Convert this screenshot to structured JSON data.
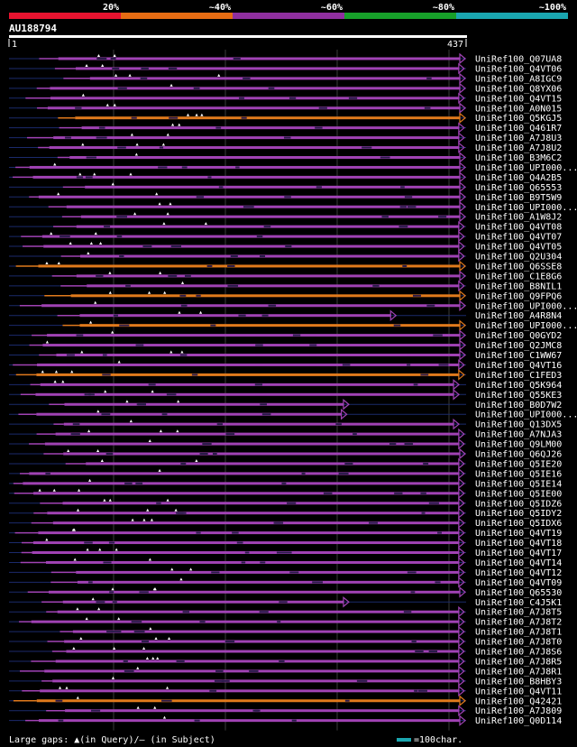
{
  "chart_data": {
    "type": "alignment-overview",
    "title": "AU188794",
    "query_start": "1",
    "query_end": "437",
    "scale_percent_labels": [
      "20%",
      "~40%",
      "~60%",
      "~80%",
      "~100%"
    ],
    "scale_colors": [
      "#e8132f",
      "#e86d13",
      "#8f2f9f",
      "#17a02a",
      "#1aa6b0"
    ],
    "category_colors": {
      "magenta": "#a042b4",
      "orange": "#e07a1c"
    },
    "legend_text": "Large gaps: ▲(in Query)/— (in Subject)",
    "legend_scale_text": "=100char.",
    "legend_scale_color": "#1aa6b0",
    "hits": [
      {
        "label": "UniRef100_Q07UA8",
        "start": 1,
        "end": 437,
        "color": "magenta"
      },
      {
        "label": "UniRef100_Q4VT06",
        "start": 1,
        "end": 430,
        "color": "magenta"
      },
      {
        "label": "UniRef100_A8IGC9",
        "start": 1,
        "end": 437,
        "color": "magenta"
      },
      {
        "label": "UniRef100_Q8YX06",
        "start": 1,
        "end": 437,
        "color": "magenta"
      },
      {
        "label": "UniRef100_Q4VT15",
        "start": 1,
        "end": 430,
        "color": "magenta"
      },
      {
        "label": "UniRef100_A0N015",
        "start": 1,
        "end": 437,
        "color": "magenta"
      },
      {
        "label": "UniRef100_Q5KGJ5",
        "start": 1,
        "end": 437,
        "color": "orange"
      },
      {
        "label": "UniRef100_Q461R7",
        "start": 1,
        "end": 430,
        "color": "magenta"
      },
      {
        "label": "UniRef100_A7J8U3",
        "start": 1,
        "end": 430,
        "color": "magenta"
      },
      {
        "label": "UniRef100_A7J8U2",
        "start": 1,
        "end": 430,
        "color": "magenta"
      },
      {
        "label": "UniRef100_B3M6C2",
        "start": 1,
        "end": 437,
        "color": "magenta"
      },
      {
        "label": "UniRef100_UPI000...",
        "start": 1,
        "end": 437,
        "color": "magenta"
      },
      {
        "label": "UniRef100_Q4A2B5",
        "start": 1,
        "end": 437,
        "color": "magenta"
      },
      {
        "label": "UniRef100_Q65553",
        "start": 1,
        "end": 432,
        "color": "magenta"
      },
      {
        "label": "UniRef100_B9T5W9",
        "start": 1,
        "end": 437,
        "color": "magenta"
      },
      {
        "label": "UniRef100_UPI000...",
        "start": 1,
        "end": 442,
        "color": "magenta"
      },
      {
        "label": "UniRef100_A1W8J2",
        "start": 1,
        "end": 445,
        "color": "magenta"
      },
      {
        "label": "UniRef100_Q4VT08",
        "start": 1,
        "end": 430,
        "color": "magenta"
      },
      {
        "label": "UniRef100_Q4VT07",
        "start": 1,
        "end": 430,
        "color": "magenta"
      },
      {
        "label": "UniRef100_Q4VT05",
        "start": 1,
        "end": 430,
        "color": "magenta"
      },
      {
        "label": "UniRef100_Q2U304",
        "start": 1,
        "end": 430,
        "color": "magenta"
      },
      {
        "label": "UniRef100_Q6SSE8",
        "start": 1,
        "end": 437,
        "color": "orange"
      },
      {
        "label": "UniRef100_C1E8G6",
        "start": 1,
        "end": 437,
        "color": "magenta"
      },
      {
        "label": "UniRef100_B8NIL1",
        "start": 1,
        "end": 430,
        "color": "magenta"
      },
      {
        "label": "UniRef100_Q9FPQ6",
        "start": 1,
        "end": 437,
        "color": "orange"
      },
      {
        "label": "UniRef100_UPI000...",
        "start": 1,
        "end": 437,
        "color": "magenta"
      },
      {
        "label": "UniRef100_A4R8N4",
        "start": 1,
        "end": 365,
        "color": "magenta"
      },
      {
        "label": "UniRef100_UPI000...",
        "start": 1,
        "end": 445,
        "color": "orange"
      },
      {
        "label": "UniRef100_Q0GYD2",
        "start": 1,
        "end": 437,
        "color": "magenta"
      },
      {
        "label": "UniRef100_Q2JMC8",
        "start": 1,
        "end": 437,
        "color": "magenta"
      },
      {
        "label": "UniRef100_C1WW67",
        "start": 1,
        "end": 440,
        "color": "magenta"
      },
      {
        "label": "UniRef100_Q4VT16",
        "start": 1,
        "end": 430,
        "color": "magenta"
      },
      {
        "label": "UniRef100_C1FED3",
        "start": 1,
        "end": 430,
        "color": "orange"
      },
      {
        "label": "UniRef100_Q5K964",
        "start": 1,
        "end": 425,
        "color": "magenta"
      },
      {
        "label": "UniRef100_Q55KE3",
        "start": 1,
        "end": 425,
        "color": "magenta"
      },
      {
        "label": "UniRef100_B0D7W2",
        "start": 1,
        "end": 320,
        "color": "magenta"
      },
      {
        "label": "UniRef100_UPI000...",
        "start": 1,
        "end": 318,
        "color": "magenta"
      },
      {
        "label": "UniRef100_Q13DX5",
        "start": 1,
        "end": 425,
        "color": "magenta"
      },
      {
        "label": "UniRef100_A7NJA3",
        "start": 1,
        "end": 430,
        "color": "magenta"
      },
      {
        "label": "UniRef100_Q9LM00",
        "start": 1,
        "end": 430,
        "color": "magenta"
      },
      {
        "label": "UniRef100_Q6QJ26",
        "start": 1,
        "end": 440,
        "color": "magenta"
      },
      {
        "label": "UniRef100_Q5IE20",
        "start": 1,
        "end": 430,
        "color": "magenta"
      },
      {
        "label": "UniRef100_Q5IE16",
        "start": 1,
        "end": 430,
        "color": "magenta"
      },
      {
        "label": "UniRef100_Q5IE14",
        "start": 1,
        "end": 430,
        "color": "magenta"
      },
      {
        "label": "UniRef100_Q5IE00",
        "start": 1,
        "end": 430,
        "color": "magenta"
      },
      {
        "label": "UniRef100_Q5IDZ6",
        "start": 1,
        "end": 430,
        "color": "magenta"
      },
      {
        "label": "UniRef100_Q5IDY2",
        "start": 1,
        "end": 430,
        "color": "magenta"
      },
      {
        "label": "UniRef100_Q5IDX6",
        "start": 1,
        "end": 430,
        "color": "magenta"
      },
      {
        "label": "UniRef100_Q4VT19",
        "start": 1,
        "end": 430,
        "color": "magenta"
      },
      {
        "label": "UniRef100_Q4VT18",
        "start": 1,
        "end": 430,
        "color": "magenta"
      },
      {
        "label": "UniRef100_Q4VT17",
        "start": 1,
        "end": 430,
        "color": "magenta"
      },
      {
        "label": "UniRef100_Q4VT14",
        "start": 1,
        "end": 430,
        "color": "magenta"
      },
      {
        "label": "UniRef100_Q4VT12",
        "start": 1,
        "end": 430,
        "color": "magenta"
      },
      {
        "label": "UniRef100_Q4VT09",
        "start": 1,
        "end": 430,
        "color": "magenta"
      },
      {
        "label": "UniRef100_Q65530",
        "start": 1,
        "end": 440,
        "color": "magenta"
      },
      {
        "label": "UniRef100_C4J5K1",
        "start": 1,
        "end": 320,
        "color": "magenta"
      },
      {
        "label": "UniRef100_A7J8T5",
        "start": 1,
        "end": 430,
        "color": "magenta"
      },
      {
        "label": "UniRef100_A7J8T2",
        "start": 1,
        "end": 430,
        "color": "magenta"
      },
      {
        "label": "UniRef100_A7J8T1",
        "start": 1,
        "end": 430,
        "color": "magenta"
      },
      {
        "label": "UniRef100_A7J8T0",
        "start": 1,
        "end": 430,
        "color": "magenta"
      },
      {
        "label": "UniRef100_A7J8S6",
        "start": 1,
        "end": 430,
        "color": "magenta"
      },
      {
        "label": "UniRef100_A7J8R5",
        "start": 1,
        "end": 430,
        "color": "magenta"
      },
      {
        "label": "UniRef100_A7J8R1",
        "start": 1,
        "end": 430,
        "color": "magenta"
      },
      {
        "label": "UniRef100_B8HBY3",
        "start": 1,
        "end": 430,
        "color": "magenta"
      },
      {
        "label": "UniRef100_Q4VT11",
        "start": 1,
        "end": 430,
        "color": "magenta"
      },
      {
        "label": "UniRef100_Q42421",
        "start": 1,
        "end": 437,
        "color": "orange"
      },
      {
        "label": "UniRef100_A7J809",
        "start": 1,
        "end": 430,
        "color": "magenta"
      },
      {
        "label": "UniRef100_Q0D114",
        "start": 1,
        "end": 437,
        "color": "magenta"
      }
    ]
  }
}
